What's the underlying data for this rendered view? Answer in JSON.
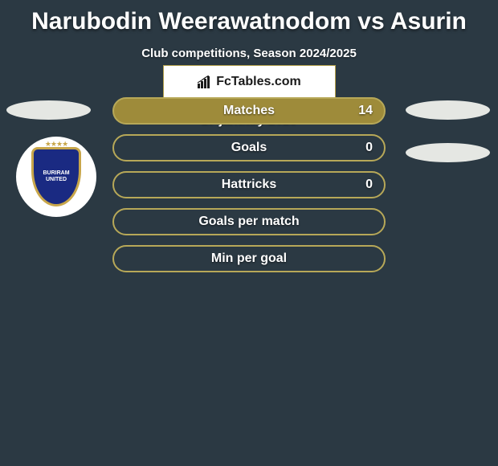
{
  "title": "Narubodin Weerawatnodom vs Asurin",
  "subtitle": "Club competitions, Season 2024/2025",
  "date": "17 january 2025",
  "brand": "FcTables.com",
  "crest": {
    "line1": "BURIRAM",
    "line2": "UNITED"
  },
  "colors": {
    "background": "#2b3943",
    "bar_fill": "#9e8b3a",
    "bar_border": "#b7a858",
    "bar_empty_fill": "transparent",
    "text": "#ffffff"
  },
  "stats": [
    {
      "label": "Matches",
      "value": "14",
      "filled": true
    },
    {
      "label": "Goals",
      "value": "0",
      "filled": false
    },
    {
      "label": "Hattricks",
      "value": "0",
      "filled": false
    },
    {
      "label": "Goals per match",
      "value": "",
      "filled": false
    },
    {
      "label": "Min per goal",
      "value": "",
      "filled": false
    }
  ]
}
